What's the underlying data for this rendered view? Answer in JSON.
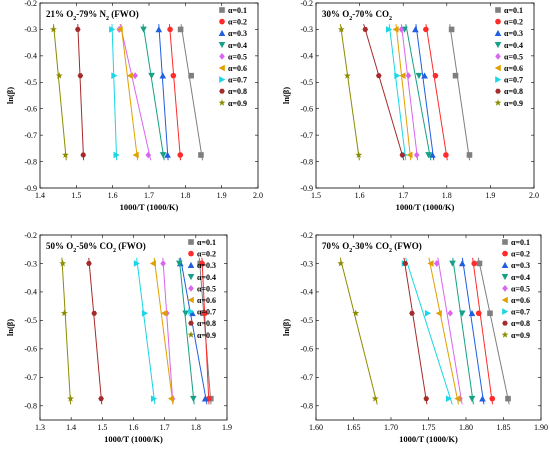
{
  "chart_data": [
    {
      "type": "scatter",
      "title": "21% O₂-79% N₂ (FWO)",
      "title_parts": [
        {
          "t": "21% O",
          "sub": false
        },
        {
          "t": "2",
          "sub": true
        },
        {
          "t": "-79% N",
          "sub": false
        },
        {
          "t": "2",
          "sub": true
        },
        {
          "t": " (FWO)",
          "sub": false
        }
      ],
      "xlabel": "1000/T (1000/K)",
      "ylabel": "ln(β)",
      "xlim": [
        1.4,
        2.0
      ],
      "ylim": [
        -0.9,
        -0.2
      ],
      "xticks": [
        "1.4",
        "1.5",
        "1.6",
        "1.7",
        "1.8",
        "1.9",
        "2.0"
      ],
      "yticks": [
        "-0.2",
        "-0.3",
        "-0.4",
        "-0.5",
        "-0.6",
        "-0.7",
        "-0.8",
        "-0.9"
      ],
      "series": [
        {
          "name": "α=0.1",
          "x": [
            1.787,
            1.816,
            1.843
          ],
          "y": [
            -0.3,
            -0.475,
            -0.775
          ]
        },
        {
          "name": "α=0.2",
          "x": [
            1.758,
            1.767,
            1.786
          ],
          "y": [
            -0.3,
            -0.475,
            -0.775
          ]
        },
        {
          "name": "α=0.3",
          "x": [
            1.727,
            1.738,
            1.751
          ],
          "y": [
            -0.3,
            -0.475,
            -0.775
          ]
        },
        {
          "name": "α=0.4",
          "x": [
            1.685,
            1.707,
            1.739
          ],
          "y": [
            -0.3,
            -0.475,
            -0.775
          ]
        },
        {
          "name": "α=0.5",
          "x": [
            1.618,
            1.662,
            1.698
          ],
          "y": [
            -0.3,
            -0.475,
            -0.775
          ]
        },
        {
          "name": "α=0.6",
          "x": [
            1.62,
            1.648,
            1.664
          ],
          "y": [
            -0.3,
            -0.475,
            -0.775
          ]
        },
        {
          "name": "α=0.7",
          "x": [
            1.598,
            1.604,
            1.61
          ],
          "y": [
            -0.3,
            -0.475,
            -0.775
          ]
        },
        {
          "name": "α=0.8",
          "x": [
            1.504,
            1.511,
            1.519
          ],
          "y": [
            -0.3,
            -0.475,
            -0.775
          ]
        },
        {
          "name": "α=0.9",
          "x": [
            1.437,
            1.453,
            1.47
          ],
          "y": [
            -0.3,
            -0.475,
            -0.775
          ]
        }
      ]
    },
    {
      "type": "scatter",
      "title": "30% O₂-70% CO₂",
      "title_parts": [
        {
          "t": "30% O",
          "sub": false
        },
        {
          "t": "2",
          "sub": true
        },
        {
          "t": "-70% CO",
          "sub": false
        },
        {
          "t": "2",
          "sub": true
        }
      ],
      "xlabel": "1000/T (1000/K)",
      "ylabel": "ln(β)",
      "xlim": [
        1.5,
        2.0
      ],
      "ylim": [
        -0.9,
        -0.2
      ],
      "xticks": [
        "1.5",
        "1.6",
        "1.7",
        "1.8",
        "1.9",
        "2.0"
      ],
      "yticks": [
        "-0.2",
        "-0.3",
        "-0.4",
        "-0.5",
        "-0.6",
        "-0.7",
        "-0.8",
        "-0.9"
      ],
      "series": [
        {
          "name": "α=0.1",
          "x": [
            1.811,
            1.82,
            1.852
          ],
          "y": [
            -0.3,
            -0.475,
            -0.775
          ]
        },
        {
          "name": "α=0.2",
          "x": [
            1.752,
            1.774,
            1.798
          ],
          "y": [
            -0.3,
            -0.475,
            -0.775
          ]
        },
        {
          "name": "α=0.3",
          "x": [
            1.728,
            1.749,
            1.767
          ],
          "y": [
            -0.3,
            -0.475,
            -0.775
          ]
        },
        {
          "name": "α=0.4",
          "x": [
            1.703,
            1.736,
            1.758
          ],
          "y": [
            -0.3,
            -0.475,
            -0.775
          ]
        },
        {
          "name": "α=0.5",
          "x": [
            1.696,
            1.712,
            1.731
          ],
          "y": [
            -0.3,
            -0.475,
            -0.775
          ]
        },
        {
          "name": "α=0.6",
          "x": [
            1.683,
            1.699,
            1.715
          ],
          "y": [
            -0.3,
            -0.475,
            -0.775
          ]
        },
        {
          "name": "α=0.7",
          "x": [
            1.667,
            1.686,
            1.703
          ],
          "y": [
            -0.3,
            -0.475,
            -0.775
          ]
        },
        {
          "name": "α=0.8",
          "x": [
            1.613,
            1.644,
            1.698
          ],
          "y": [
            -0.3,
            -0.475,
            -0.775
          ]
        },
        {
          "name": "α=0.9",
          "x": [
            1.558,
            1.572,
            1.598
          ],
          "y": [
            -0.3,
            -0.475,
            -0.775
          ]
        }
      ]
    },
    {
      "type": "scatter",
      "title": "50% O₂-50% CO₂ (FWO)",
      "title_parts": [
        {
          "t": "50% O",
          "sub": false
        },
        {
          "t": "2",
          "sub": true
        },
        {
          "t": "-50% CO",
          "sub": false
        },
        {
          "t": "2",
          "sub": true
        },
        {
          "t": " (FWO)",
          "sub": false
        }
      ],
      "xlabel": "1000/T (1000/K)",
      "ylabel": "ln(β)",
      "xlim": [
        1.3,
        1.9
      ],
      "ylim": [
        -0.85,
        -0.2
      ],
      "xticks": [
        "1.3",
        "1.4",
        "1.5",
        "1.6",
        "1.7",
        "1.8",
        "1.9"
      ],
      "yticks": [
        "-0.2",
        "-0.3",
        "-0.4",
        "-0.5",
        "-0.6",
        "-0.7",
        "-0.8"
      ],
      "series": [
        {
          "name": "α=0.1",
          "x": [
            1.814,
            1.823,
            1.848
          ],
          "y": [
            -0.3,
            -0.475,
            -0.775
          ]
        },
        {
          "name": "α=0.2",
          "x": [
            1.82,
            1.829,
            1.841
          ],
          "y": [
            -0.3,
            -0.475,
            -0.775
          ]
        },
        {
          "name": "α=0.3",
          "x": [
            1.75,
            1.789,
            1.83
          ],
          "y": [
            -0.3,
            -0.475,
            -0.775
          ]
        },
        {
          "name": "α=0.4",
          "x": [
            1.747,
            1.767,
            1.792
          ],
          "y": [
            -0.3,
            -0.475,
            -0.775
          ]
        },
        {
          "name": "α=0.5",
          "x": [
            1.695,
            1.707,
            1.725
          ],
          "y": [
            -0.3,
            -0.475,
            -0.775
          ]
        },
        {
          "name": "α=0.6",
          "x": [
            1.663,
            1.698,
            1.721
          ],
          "y": [
            -0.3,
            -0.475,
            -0.775
          ]
        },
        {
          "name": "α=0.7",
          "x": [
            1.61,
            1.636,
            1.665
          ],
          "y": [
            -0.3,
            -0.475,
            -0.775
          ]
        },
        {
          "name": "α=0.8",
          "x": [
            1.457,
            1.474,
            1.496
          ],
          "y": [
            -0.3,
            -0.475,
            -0.775
          ]
        },
        {
          "name": "α=0.9",
          "x": [
            1.373,
            1.378,
            1.398
          ],
          "y": [
            -0.3,
            -0.475,
            -0.775
          ]
        }
      ]
    },
    {
      "type": "scatter",
      "title": "70% O₂-30% CO₂ (FWO)",
      "title_parts": [
        {
          "t": "70% O",
          "sub": false
        },
        {
          "t": "2",
          "sub": true
        },
        {
          "t": "-30% CO",
          "sub": false
        },
        {
          "t": "2",
          "sub": true
        },
        {
          "t": " (FWO)",
          "sub": false
        }
      ],
      "xlabel": "1000/T (1000/K)",
      "ylabel": "ln(β)",
      "xlim": [
        1.6,
        1.9
      ],
      "ylim": [
        -0.85,
        -0.2
      ],
      "xticks": [
        "1.60",
        "1.65",
        "1.70",
        "1.75",
        "1.80",
        "1.85",
        "1.90"
      ],
      "yticks": [
        "-0.2",
        "-0.3",
        "-0.4",
        "-0.5",
        "-0.6",
        "-0.7",
        "-0.8"
      ],
      "series": [
        {
          "name": "α=0.1",
          "x": [
            1.818,
            1.832,
            1.856
          ],
          "y": [
            -0.3,
            -0.475,
            -0.775
          ]
        },
        {
          "name": "α=0.2",
          "x": [
            1.811,
            1.817,
            1.835
          ],
          "y": [
            -0.3,
            -0.475,
            -0.775
          ]
        },
        {
          "name": "α=0.3",
          "x": [
            1.795,
            1.808,
            1.822
          ],
          "y": [
            -0.3,
            -0.475,
            -0.775
          ]
        },
        {
          "name": "α=0.4",
          "x": [
            1.782,
            1.795,
            1.808
          ],
          "y": [
            -0.3,
            -0.475,
            -0.775
          ]
        },
        {
          "name": "α=0.5",
          "x": [
            1.761,
            1.779,
            1.792
          ],
          "y": [
            -0.3,
            -0.475,
            -0.775
          ]
        },
        {
          "name": "α=0.6",
          "x": [
            1.753,
            1.764,
            1.789
          ],
          "y": [
            -0.3,
            -0.475,
            -0.775
          ]
        },
        {
          "name": "α=0.7",
          "x": [
            1.718,
            1.749,
            1.777
          ],
          "y": [
            -0.3,
            -0.475,
            -0.775
          ]
        },
        {
          "name": "α=0.8",
          "x": [
            1.719,
            1.728,
            1.747
          ],
          "y": [
            -0.3,
            -0.475,
            -0.775
          ]
        },
        {
          "name": "α=0.9",
          "x": [
            1.633,
            1.653,
            1.679
          ],
          "y": [
            -0.3,
            -0.475,
            -0.775
          ]
        }
      ]
    }
  ],
  "legend_style": [
    {
      "color": "#7f7f7f",
      "marker": "square"
    },
    {
      "color": "#ff2a2a",
      "marker": "circle"
    },
    {
      "color": "#1f5fe0",
      "marker": "triangle-up"
    },
    {
      "color": "#16a085",
      "marker": "triangle-down"
    },
    {
      "color": "#d966f0",
      "marker": "diamond"
    },
    {
      "color": "#e0a000",
      "marker": "triangle-left"
    },
    {
      "color": "#1ad6e6",
      "marker": "triangle-right"
    },
    {
      "color": "#a52a2a",
      "marker": "hexagon"
    },
    {
      "color": "#8c8c00",
      "marker": "star"
    }
  ],
  "legend_placement": "top-right",
  "grid": false
}
